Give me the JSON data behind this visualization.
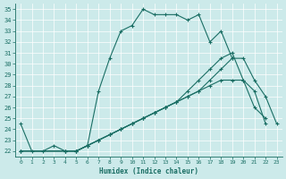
{
  "xlabel": "Humidex (Indice chaleur)",
  "bg_color": "#cceaea",
  "line_color": "#1a6e64",
  "grid_color": "#b0d8d8",
  "xlim": [
    -0.5,
    23.5
  ],
  "ylim": [
    21.5,
    35.5
  ],
  "xticks": [
    0,
    1,
    2,
    3,
    4,
    5,
    6,
    7,
    8,
    9,
    10,
    11,
    12,
    13,
    14,
    15,
    16,
    17,
    18,
    19,
    20,
    21,
    22,
    23
  ],
  "yticks": [
    22,
    23,
    24,
    25,
    26,
    27,
    28,
    29,
    30,
    31,
    32,
    33,
    34,
    35
  ],
  "series1_x": [
    0,
    1,
    2,
    3,
    4,
    5,
    6,
    7,
    8,
    9,
    10,
    11,
    12,
    13,
    14,
    15,
    16,
    17,
    18,
    19
  ],
  "series1_y": [
    24.5,
    22.0,
    22.0,
    22.5,
    22.0,
    22.0,
    22.5,
    27.5,
    30.5,
    33.0,
    33.5,
    35.0,
    34.5,
    34.5,
    34.5,
    34.0,
    34.5,
    32.0,
    33.0,
    30.5
  ],
  "series2_x": [
    0,
    4,
    5,
    6,
    7,
    8,
    9,
    10,
    11,
    12,
    13,
    14,
    15,
    16,
    17,
    18,
    19,
    20,
    21,
    22
  ],
  "series2_y": [
    22.0,
    22.0,
    22.0,
    22.5,
    23.0,
    23.5,
    24.0,
    24.5,
    25.0,
    25.5,
    26.0,
    26.5,
    27.0,
    27.5,
    28.0,
    28.5,
    28.5,
    28.5,
    27.5,
    24.5
  ],
  "series3_x": [
    0,
    4,
    5,
    6,
    7,
    8,
    9,
    10,
    11,
    12,
    13,
    14,
    15,
    16,
    17,
    18,
    19,
    20,
    21,
    22
  ],
  "series3_y": [
    22.0,
    22.0,
    22.0,
    22.5,
    23.0,
    23.5,
    24.0,
    24.5,
    25.0,
    25.5,
    26.0,
    26.5,
    27.5,
    28.5,
    29.5,
    30.5,
    31.0,
    28.5,
    26.0,
    25.0
  ],
  "series4_x": [
    0,
    4,
    5,
    6,
    7,
    8,
    9,
    10,
    11,
    12,
    13,
    14,
    15,
    16,
    17,
    18,
    19,
    20,
    21,
    22,
    23
  ],
  "series4_y": [
    22.0,
    22.0,
    22.0,
    22.5,
    23.0,
    23.5,
    24.0,
    24.5,
    25.0,
    25.5,
    26.0,
    26.5,
    27.0,
    27.5,
    28.5,
    29.5,
    30.5,
    30.5,
    28.5,
    27.0,
    24.5
  ]
}
